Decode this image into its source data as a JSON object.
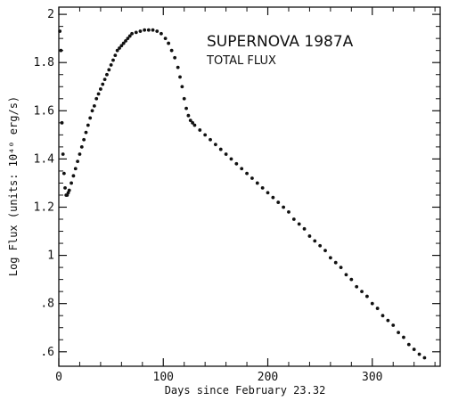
{
  "chart_data": {
    "type": "scatter",
    "title": "SUPERNOVA 1987A",
    "subtitle": "TOTAL FLUX",
    "xlabel": "Days since February 23.32",
    "ylabel": "Log Flux (units: 10⁴⁰ erg/s)",
    "xlim": [
      0,
      365
    ],
    "ylim": [
      0.54,
      2.03
    ],
    "xticks": [
      0,
      100,
      200,
      300
    ],
    "xtick_labels": [
      "0",
      "100",
      "200",
      "300"
    ],
    "yticks": [
      0.6,
      0.8,
      1.0,
      1.2,
      1.4,
      1.6,
      1.8,
      2.0
    ],
    "ytick_labels": [
      ".6",
      ".8",
      "1",
      "1.2",
      "1.4",
      "1.6",
      "1.8",
      "2"
    ],
    "grid": false,
    "series": [
      {
        "color": "#111111",
        "points": [
          [
            1,
            1.93
          ],
          [
            2,
            1.85
          ],
          [
            3,
            1.55
          ],
          [
            4,
            1.42
          ],
          [
            5,
            1.34
          ],
          [
            6,
            1.28
          ],
          [
            7,
            1.25
          ],
          [
            8,
            1.25
          ],
          [
            9,
            1.26
          ],
          [
            10,
            1.27
          ],
          [
            12,
            1.3
          ],
          [
            14,
            1.33
          ],
          [
            16,
            1.36
          ],
          [
            18,
            1.39
          ],
          [
            20,
            1.42
          ],
          [
            22,
            1.45
          ],
          [
            24,
            1.48
          ],
          [
            26,
            1.51
          ],
          [
            28,
            1.54
          ],
          [
            30,
            1.57
          ],
          [
            32,
            1.6
          ],
          [
            34,
            1.62
          ],
          [
            36,
            1.65
          ],
          [
            38,
            1.67
          ],
          [
            40,
            1.69
          ],
          [
            42,
            1.71
          ],
          [
            44,
            1.73
          ],
          [
            46,
            1.75
          ],
          [
            48,
            1.77
          ],
          [
            50,
            1.79
          ],
          [
            52,
            1.81
          ],
          [
            54,
            1.83
          ],
          [
            56,
            1.85
          ],
          [
            58,
            1.86
          ],
          [
            60,
            1.87
          ],
          [
            62,
            1.88
          ],
          [
            64,
            1.89
          ],
          [
            66,
            1.9
          ],
          [
            68,
            1.91
          ],
          [
            70,
            1.92
          ],
          [
            74,
            1.925
          ],
          [
            78,
            1.93
          ],
          [
            82,
            1.935
          ],
          [
            86,
            1.935
          ],
          [
            90,
            1.935
          ],
          [
            94,
            1.93
          ],
          [
            98,
            1.92
          ],
          [
            102,
            1.9
          ],
          [
            105,
            1.88
          ],
          [
            108,
            1.85
          ],
          [
            111,
            1.82
          ],
          [
            114,
            1.78
          ],
          [
            116,
            1.74
          ],
          [
            118,
            1.7
          ],
          [
            120,
            1.65
          ],
          [
            122,
            1.61
          ],
          [
            124,
            1.58
          ],
          [
            126,
            1.56
          ],
          [
            128,
            1.55
          ],
          [
            130,
            1.54
          ],
          [
            135,
            1.52
          ],
          [
            140,
            1.5
          ],
          [
            145,
            1.48
          ],
          [
            150,
            1.46
          ],
          [
            155,
            1.44
          ],
          [
            160,
            1.42
          ],
          [
            165,
            1.4
          ],
          [
            170,
            1.38
          ],
          [
            175,
            1.36
          ],
          [
            180,
            1.34
          ],
          [
            185,
            1.32
          ],
          [
            190,
            1.3
          ],
          [
            195,
            1.28
          ],
          [
            200,
            1.26
          ],
          [
            205,
            1.24
          ],
          [
            210,
            1.22
          ],
          [
            215,
            1.2
          ],
          [
            220,
            1.18
          ],
          [
            225,
            1.15
          ],
          [
            230,
            1.13
          ],
          [
            235,
            1.11
          ],
          [
            240,
            1.08
          ],
          [
            245,
            1.06
          ],
          [
            250,
            1.04
          ],
          [
            255,
            1.02
          ],
          [
            260,
            0.99
          ],
          [
            265,
            0.97
          ],
          [
            270,
            0.95
          ],
          [
            275,
            0.92
          ],
          [
            280,
            0.9
          ],
          [
            285,
            0.87
          ],
          [
            290,
            0.85
          ],
          [
            295,
            0.83
          ],
          [
            300,
            0.8
          ],
          [
            305,
            0.78
          ],
          [
            310,
            0.75
          ],
          [
            315,
            0.73
          ],
          [
            320,
            0.71
          ],
          [
            325,
            0.68
          ],
          [
            330,
            0.66
          ],
          [
            335,
            0.63
          ],
          [
            340,
            0.61
          ],
          [
            345,
            0.59
          ],
          [
            350,
            0.575
          ]
        ]
      }
    ]
  }
}
